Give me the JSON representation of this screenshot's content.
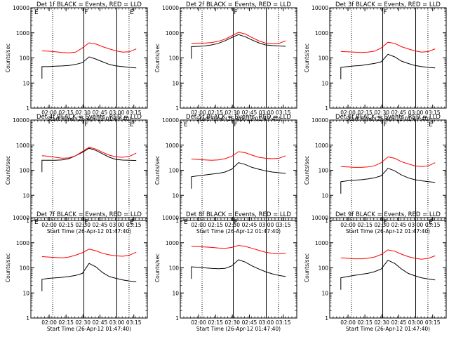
{
  "ylabel": "Counts/sec",
  "xlabel": "Start Time (26-Apr-12 01:47:40)",
  "x_tick_labels": [
    "02:00",
    "02:15",
    "02:30",
    "02:45",
    "03:00",
    "03:15"
  ],
  "y_tick_labels": [
    "1",
    "10",
    "100",
    "1000",
    "10000"
  ],
  "colors": {
    "events": "#000000",
    "lld": "#ff0000",
    "axes": "#000000"
  },
  "chart_data": [
    {
      "type": "line",
      "title": "Det 1f BLACK = Events, RED = LLD",
      "ylim": [
        1,
        10000
      ],
      "yscale": "log",
      "marker_labels": [
        "E",
        "F",
        "E"
      ],
      "series": [
        {
          "name": "Events",
          "color": "black",
          "values": [
            45,
            45,
            47,
            48,
            50,
            55,
            65,
            110,
            90,
            70,
            55,
            48,
            45,
            42,
            40
          ]
        },
        {
          "name": "LLD",
          "color": "red",
          "values": [
            190,
            185,
            175,
            165,
            160,
            170,
            250,
            400,
            360,
            280,
            230,
            190,
            170,
            175,
            230
          ]
        }
      ]
    },
    {
      "type": "line",
      "title": "Det 2f BLACK = Events, RED = LLD",
      "ylim": [
        1,
        10000
      ],
      "yscale": "log",
      "marker_labels": [
        "F"
      ],
      "series": [
        {
          "name": "Events",
          "color": "black",
          "values": [
            280,
            290,
            300,
            330,
            380,
            480,
            650,
            850,
            700,
            520,
            400,
            330,
            310,
            300,
            290
          ]
        },
        {
          "name": "LLD",
          "color": "red",
          "values": [
            380,
            390,
            390,
            410,
            460,
            560,
            760,
            1050,
            900,
            650,
            480,
            390,
            370,
            380,
            480
          ]
        }
      ]
    },
    {
      "type": "line",
      "title": "Det 3f BLACK = Events, RED = LLD",
      "ylim": [
        1,
        10000
      ],
      "yscale": "log",
      "marker_labels": [
        "F"
      ],
      "series": [
        {
          "name": "Events",
          "color": "black",
          "values": [
            42,
            45,
            48,
            50,
            55,
            60,
            70,
            140,
            110,
            75,
            60,
            50,
            45,
            42,
            40
          ]
        },
        {
          "name": "LLD",
          "color": "red",
          "values": [
            180,
            175,
            170,
            165,
            170,
            185,
            250,
            420,
            380,
            280,
            230,
            190,
            170,
            180,
            230
          ]
        }
      ]
    },
    {
      "type": "line",
      "title": "Det 4f BLACK = Events, RED = LLD",
      "ylim": [
        1,
        10000
      ],
      "yscale": "log",
      "marker_labels": [
        "F",
        "E"
      ],
      "series": [
        {
          "name": "Events",
          "color": "black",
          "values": [
            250,
            250,
            250,
            260,
            290,
            380,
            520,
            750,
            620,
            450,
            330,
            270,
            255,
            250,
            245
          ]
        },
        {
          "name": "LLD",
          "color": "red",
          "values": [
            380,
            360,
            330,
            300,
            310,
            380,
            560,
            820,
            700,
            520,
            400,
            340,
            330,
            360,
            480
          ]
        }
      ]
    },
    {
      "type": "line",
      "title": "Det 5f BLACK = Events, RED = LLD",
      "ylim": [
        1,
        10000
      ],
      "yscale": "log",
      "marker_labels": [
        "E",
        "F"
      ],
      "series": [
        {
          "name": "Events",
          "color": "black",
          "values": [
            55,
            60,
            65,
            70,
            75,
            85,
            110,
            200,
            170,
            130,
            110,
            95,
            85,
            80,
            75
          ]
        },
        {
          "name": "LLD",
          "color": "red",
          "values": [
            280,
            270,
            260,
            250,
            260,
            290,
            360,
            550,
            500,
            400,
            330,
            300,
            290,
            300,
            380
          ]
        }
      ]
    },
    {
      "type": "line",
      "title": "Det 6f BLACK = Events, RED = LLD",
      "ylim": [
        1,
        10000
      ],
      "yscale": "log",
      "marker_labels": [
        "F",
        "E"
      ],
      "series": [
        {
          "name": "Events",
          "color": "black",
          "values": [
            35,
            38,
            40,
            42,
            45,
            50,
            60,
            120,
            95,
            65,
            50,
            42,
            38,
            35,
            33
          ]
        },
        {
          "name": "LLD",
          "color": "red",
          "values": [
            140,
            135,
            130,
            130,
            135,
            150,
            200,
            340,
            300,
            220,
            180,
            150,
            140,
            150,
            200
          ]
        }
      ]
    },
    {
      "type": "line",
      "title": "Det 7f BLACK = Events, RED = LLD",
      "ylim": [
        1,
        10000
      ],
      "yscale": "log",
      "marker_labels": [
        "E",
        "F",
        "E"
      ],
      "series": [
        {
          "name": "Events",
          "color": "black",
          "values": [
            35,
            38,
            40,
            42,
            45,
            50,
            60,
            150,
            110,
            65,
            45,
            38,
            33,
            30,
            28
          ]
        },
        {
          "name": "LLD",
          "color": "red",
          "values": [
            280,
            270,
            260,
            250,
            270,
            320,
            400,
            560,
            480,
            380,
            330,
            300,
            290,
            320,
            420
          ]
        }
      ]
    },
    {
      "type": "line",
      "title": "Det 8f BLACK = Events, RED = LLD",
      "ylim": [
        1,
        10000
      ],
      "yscale": "log",
      "marker_labels": [
        "E",
        "F"
      ],
      "series": [
        {
          "name": "Events",
          "color": "black",
          "values": [
            110,
            105,
            100,
            95,
            92,
            95,
            120,
            210,
            170,
            120,
            90,
            70,
            58,
            50,
            45
          ]
        },
        {
          "name": "LLD",
          "color": "red",
          "values": [
            720,
            700,
            680,
            650,
            620,
            600,
            650,
            780,
            720,
            600,
            500,
            420,
            380,
            360,
            380
          ]
        }
      ]
    },
    {
      "type": "line",
      "title": "Det 9f BLACK = Events, RED = LLD",
      "ylim": [
        1,
        10000
      ],
      "yscale": "log",
      "marker_labels": [
        "F",
        "E"
      ],
      "series": [
        {
          "name": "Events",
          "color": "black",
          "values": [
            40,
            45,
            50,
            55,
            60,
            70,
            90,
            200,
            150,
            90,
            60,
            48,
            40,
            36,
            33
          ]
        },
        {
          "name": "LLD",
          "color": "red",
          "values": [
            250,
            240,
            230,
            230,
            240,
            270,
            340,
            520,
            460,
            350,
            280,
            240,
            220,
            240,
            300
          ]
        }
      ]
    }
  ]
}
